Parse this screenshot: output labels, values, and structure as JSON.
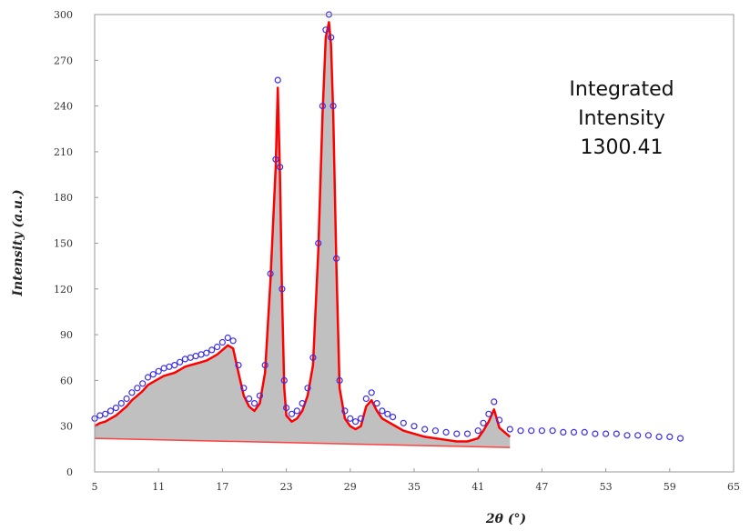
{
  "chart_data": {
    "type": "scatter",
    "xlabel": "2θ (°)",
    "ylabel": "Intensity (a.u.)",
    "xlim": [
      5,
      65
    ],
    "ylim": [
      0,
      300
    ],
    "x_ticks": [
      5,
      11,
      17,
      23,
      29,
      35,
      41,
      47,
      53,
      59,
      65
    ],
    "y_ticks": [
      0,
      30,
      60,
      90,
      120,
      150,
      180,
      210,
      240,
      270,
      300
    ],
    "grid": false,
    "legend": "none",
    "annotation": {
      "line1": "Integrated",
      "line2": "Intensity",
      "value": "1300.41"
    },
    "colors": {
      "observed_points": "#3a2ee8",
      "fit_line": "#ff0000",
      "integrated_fill": "#c0c0c0",
      "baseline": "#ff4040"
    },
    "baseline": {
      "x": [
        5,
        44
      ],
      "y": [
        22,
        16
      ]
    },
    "fit_range": [
      5,
      44
    ],
    "series": [
      {
        "role": "observed",
        "x": [
          5,
          5.5,
          6,
          6.5,
          7,
          7.5,
          8,
          8.5,
          9,
          9.5,
          10,
          10.5,
          11,
          11.5,
          12,
          12.5,
          13,
          13.5,
          14,
          14.5,
          15,
          15.5,
          16,
          16.5,
          17,
          17.5,
          18,
          18.5,
          19,
          19.5,
          20,
          20.5,
          21,
          21.5,
          22,
          22.2,
          22.4,
          22.6,
          22.8,
          23,
          23.5,
          24,
          24.5,
          25,
          25.5,
          26,
          26.4,
          26.7,
          27,
          27.2,
          27.4,
          27.7,
          28,
          28.5,
          29,
          29.5,
          30,
          30.5,
          31,
          31.5,
          32,
          32.5,
          33,
          34,
          35,
          36,
          37,
          38,
          39,
          40,
          41,
          41.5,
          42,
          42.5,
          43,
          44,
          45,
          46,
          47,
          48,
          49,
          50,
          51,
          52,
          53,
          54,
          55,
          56,
          57,
          58,
          59,
          60
        ],
        "y": [
          35,
          37,
          38,
          40,
          42,
          45,
          48,
          52,
          55,
          58,
          62,
          64,
          66,
          68,
          69,
          70,
          72,
          74,
          75,
          76,
          77,
          78,
          80,
          82,
          85,
          88,
          86,
          70,
          55,
          48,
          45,
          50,
          70,
          130,
          205,
          257,
          200,
          120,
          60,
          42,
          38,
          40,
          45,
          55,
          75,
          150,
          240,
          290,
          300,
          285,
          240,
          140,
          60,
          40,
          35,
          33,
          35,
          48,
          52,
          45,
          40,
          38,
          36,
          32,
          30,
          28,
          27,
          26,
          25,
          25,
          27,
          32,
          38,
          46,
          34,
          28,
          27,
          27,
          27,
          27,
          26,
          26,
          26,
          25,
          25,
          25,
          24,
          24,
          24,
          23,
          23,
          22
        ]
      },
      {
        "role": "fit",
        "x": [
          5,
          5.5,
          6,
          6.5,
          7,
          7.5,
          8,
          8.5,
          9,
          9.5,
          10,
          10.5,
          11,
          11.5,
          12,
          12.5,
          13,
          13.5,
          14,
          14.5,
          15,
          15.5,
          16,
          16.5,
          17,
          17.5,
          18,
          18.5,
          19,
          19.5,
          20,
          20.5,
          21,
          21.5,
          22,
          22.2,
          22.4,
          22.6,
          22.8,
          23,
          23.5,
          24,
          24.5,
          25,
          25.5,
          26,
          26.4,
          26.7,
          27,
          27.2,
          27.4,
          27.7,
          28,
          28.5,
          29,
          29.5,
          30,
          30.5,
          31,
          31.5,
          32,
          32.5,
          33,
          34,
          35,
          36,
          37,
          38,
          39,
          40,
          41,
          41.5,
          42,
          42.5,
          43,
          44
        ],
        "y": [
          30,
          32,
          33,
          35,
          37,
          40,
          43,
          47,
          50,
          53,
          57,
          59,
          61,
          63,
          64,
          65,
          67,
          69,
          70,
          71,
          72,
          73,
          75,
          77,
          80,
          83,
          81,
          65,
          50,
          43,
          40,
          45,
          65,
          125,
          200,
          252,
          195,
          115,
          55,
          37,
          33,
          35,
          40,
          50,
          70,
          145,
          235,
          285,
          295,
          280,
          235,
          135,
          55,
          35,
          30,
          28,
          30,
          43,
          47,
          40,
          35,
          33,
          31,
          27,
          25,
          23,
          22,
          21,
          20,
          20,
          22,
          27,
          33,
          41,
          29,
          23
        ]
      }
    ]
  }
}
